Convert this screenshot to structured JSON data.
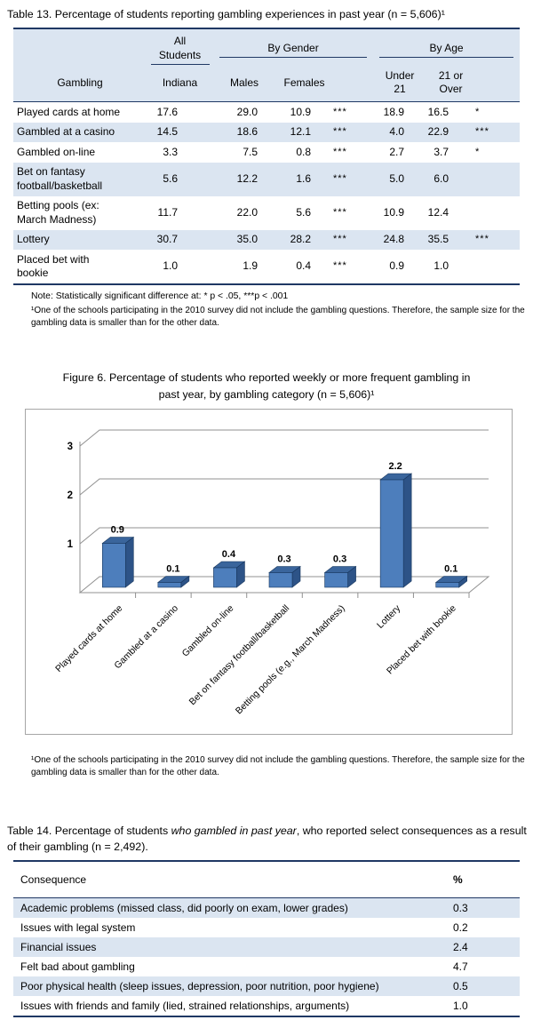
{
  "table13": {
    "title": "Table 13.  Percentage of students reporting gambling experiences in past year (n = 5,606)¹",
    "header": {
      "group_all": "All\nStudents",
      "group_gender": "By Gender",
      "group_age": "By Age",
      "col_gambling": "Gambling",
      "col_indiana": "Indiana",
      "col_males": "Males",
      "col_females": "Females",
      "col_under21": "Under\n21",
      "col_21over": "21 or\nOver"
    },
    "rows": [
      {
        "label": "Played cards at home",
        "indiana": "17.6",
        "males": "29.0",
        "females": "10.9",
        "sig_gender": "***",
        "under21": "18.9",
        "over21": "16.5",
        "sig_age": "*"
      },
      {
        "label": "Gambled at a casino",
        "indiana": "14.5",
        "males": "18.6",
        "females": "12.1",
        "sig_gender": "***",
        "under21": "4.0",
        "over21": "22.9",
        "sig_age": "***"
      },
      {
        "label": "Gambled on-line",
        "indiana": "3.3",
        "males": "7.5",
        "females": "0.8",
        "sig_gender": "***",
        "under21": "2.7",
        "over21": "3.7",
        "sig_age": "*"
      },
      {
        "label": "Bet on fantasy\nfootball/basketball",
        "indiana": "5.6",
        "males": "12.2",
        "females": "1.6",
        "sig_gender": "***",
        "under21": "5.0",
        "over21": "6.0",
        "sig_age": ""
      },
      {
        "label": "Betting pools (ex:\nMarch Madness)",
        "indiana": "11.7",
        "males": "22.0",
        "females": "5.6",
        "sig_gender": "***",
        "under21": "10.9",
        "over21": "12.4",
        "sig_age": ""
      },
      {
        "label": "Lottery",
        "indiana": "30.7",
        "males": "35.0",
        "females": "28.2",
        "sig_gender": "***",
        "under21": "24.8",
        "over21": "35.5",
        "sig_age": "***"
      },
      {
        "label": "Placed bet with\nbookie",
        "indiana": "1.0",
        "males": "1.9",
        "females": "0.4",
        "sig_gender": "***",
        "under21": "0.9",
        "over21": "1.0",
        "sig_age": ""
      }
    ],
    "note": "Note:  Statistically significant difference at: * p < .05,   ***p < .001",
    "footnote": "¹One of the schools participating in the 2010 survey did not include the gambling questions.  Therefore, the sample size for the gambling data is smaller than for the other data."
  },
  "figure6": {
    "title_line1": "Figure 6. Percentage of students who reported weekly or more frequent gambling in",
    "title_line2": "past year, by gambling category (n = 5,606)¹",
    "footnote": "¹One of the schools participating in the 2010 survey did not include the gambling questions.  Therefore, the sample size for the gambling data is smaller than for the other data."
  },
  "chart_data": {
    "type": "bar",
    "style": "3d-column",
    "categories": [
      "Played cards at home",
      "Gambled at a casino",
      "Gambled on-line",
      "Bet on fantasy football/basketball",
      "Betting pools (e.g., March Madness)",
      "Lottery",
      "Placed bet with bookie"
    ],
    "values": [
      0.9,
      0.1,
      0.4,
      0.3,
      0.3,
      2.2,
      0.1
    ],
    "data_labels": [
      "0.9",
      "0.1",
      "0.4",
      "0.3",
      "0.3",
      "2.2",
      "0.1"
    ],
    "yticks": [
      1,
      2,
      3
    ],
    "ylim": [
      0,
      3
    ],
    "legend": "none",
    "grid": "horizontal",
    "bar_color_front": "#4d7ebc",
    "bar_color_side": "#2d5387",
    "bar_color_top": "#3a659c",
    "bar_outline": "#17365d",
    "gridline_color": "#909090"
  },
  "table14": {
    "title_part1": "Table 14. Percentage of students ",
    "title_italic": "who gambled in past year",
    "title_part2": ", who reported select consequences as a result of their gambling (n = 2,492).",
    "header": {
      "col_consequence": "Consequence",
      "col_percent": "%"
    },
    "rows": [
      {
        "label": "Academic problems (missed class, did poorly on exam, lower grades)",
        "percent": "0.3"
      },
      {
        "label": "Issues with legal system",
        "percent": "0.2"
      },
      {
        "label": "Financial issues",
        "percent": "2.4"
      },
      {
        "label": "Felt bad about gambling",
        "percent": "4.7"
      },
      {
        "label": "Poor physical health (sleep issues, depression, poor nutrition, poor hygiene)",
        "percent": "0.5"
      },
      {
        "label": "Issues with friends and family (lied, strained relationships, arguments)",
        "percent": "1.0"
      }
    ]
  }
}
